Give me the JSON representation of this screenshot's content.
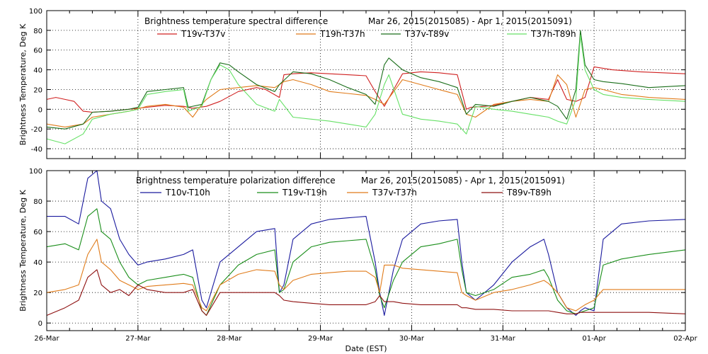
{
  "chart_data": [
    {
      "type": "line",
      "title": "Brightness temperature spectral difference",
      "date_range": "Mar 26, 2015(2015085) - Apr  1, 2015(2015091)",
      "ylabel": "Brightness Temperature, Deg K",
      "xlim": [
        0,
        7
      ],
      "ylim": [
        -50,
        100
      ],
      "yticks": [
        -40,
        -20,
        0,
        20,
        40,
        60,
        80,
        100
      ],
      "series": [
        {
          "name": "T19v-T37v",
          "color": "#d02020",
          "x": [
            0,
            0.1,
            0.2,
            0.3,
            0.4,
            0.5,
            0.7,
            0.9,
            1.1,
            1.3,
            1.5,
            1.6,
            1.75,
            1.9,
            2.1,
            2.3,
            2.4,
            2.55,
            2.6,
            2.7,
            2.9,
            3.1,
            3.3,
            3.5,
            3.6,
            3.7,
            3.9,
            4.1,
            4.3,
            4.5,
            4.6,
            4.65,
            4.8,
            4.9,
            5.1,
            5.3,
            5.5,
            5.6,
            5.7,
            5.8,
            5.9,
            6.0,
            6.2,
            6.5,
            7.0
          ],
          "y": [
            10,
            12,
            10,
            8,
            -2,
            -3,
            -2,
            0,
            2,
            4,
            3,
            1,
            3,
            8,
            18,
            22,
            20,
            12,
            35,
            36,
            37,
            36,
            35,
            34,
            18,
            3,
            36,
            38,
            37,
            35,
            0,
            2,
            3,
            4,
            8,
            12,
            10,
            30,
            10,
            8,
            12,
            43,
            40,
            38,
            36
          ]
        },
        {
          "name": "T19h-T37h",
          "color": "#e07b1a",
          "x": [
            0,
            0.2,
            0.4,
            0.5,
            0.7,
            0.9,
            1.1,
            1.3,
            1.5,
            1.6,
            1.7,
            1.75,
            1.9,
            2.1,
            2.3,
            2.5,
            2.6,
            2.7,
            2.9,
            3.1,
            3.3,
            3.5,
            3.6,
            3.7,
            3.9,
            4.1,
            4.3,
            4.5,
            4.6,
            4.7,
            4.9,
            5.1,
            5.3,
            5.5,
            5.6,
            5.7,
            5.8,
            5.9,
            6.0,
            6.1,
            6.3,
            6.6,
            7.0
          ],
          "y": [
            -15,
            -18,
            -15,
            -8,
            -5,
            -2,
            3,
            5,
            2,
            -8,
            5,
            10,
            20,
            22,
            24,
            22,
            28,
            30,
            25,
            18,
            16,
            14,
            10,
            5,
            30,
            25,
            20,
            15,
            -5,
            -8,
            5,
            8,
            10,
            8,
            35,
            25,
            -8,
            20,
            22,
            20,
            15,
            12,
            10
          ]
        },
        {
          "name": "T37v-T89v",
          "color": "#1a6e1a",
          "x": [
            0,
            0.2,
            0.4,
            0.5,
            0.7,
            0.9,
            1.0,
            1.1,
            1.3,
            1.5,
            1.55,
            1.7,
            1.8,
            1.9,
            2.0,
            2.1,
            2.3,
            2.5,
            2.55,
            2.7,
            2.9,
            3.1,
            3.3,
            3.5,
            3.6,
            3.7,
            3.75,
            3.9,
            4.1,
            4.3,
            4.5,
            4.6,
            4.7,
            4.9,
            5.1,
            5.3,
            5.5,
            5.6,
            5.7,
            5.8,
            5.85,
            5.9,
            6.0,
            6.1,
            6.3,
            6.6,
            7.0
          ],
          "y": [
            -18,
            -20,
            -15,
            -3,
            -2,
            0,
            2,
            18,
            20,
            22,
            2,
            5,
            30,
            47,
            45,
            38,
            25,
            18,
            25,
            38,
            36,
            30,
            22,
            15,
            5,
            45,
            52,
            40,
            32,
            28,
            22,
            -5,
            5,
            3,
            8,
            12,
            8,
            3,
            -10,
            20,
            80,
            45,
            30,
            28,
            26,
            22,
            24
          ]
        },
        {
          "name": "T37h-T89h",
          "color": "#66e066",
          "x": [
            0,
            0.2,
            0.4,
            0.5,
            0.7,
            0.9,
            1.0,
            1.1,
            1.3,
            1.5,
            1.55,
            1.7,
            1.8,
            1.9,
            2.0,
            2.1,
            2.3,
            2.5,
            2.55,
            2.7,
            2.9,
            3.1,
            3.3,
            3.5,
            3.6,
            3.7,
            3.75,
            3.9,
            4.1,
            4.3,
            4.5,
            4.6,
            4.7,
            4.9,
            5.1,
            5.3,
            5.5,
            5.6,
            5.7,
            5.8,
            5.85,
            5.9,
            6.0,
            6.1,
            6.3,
            6.6,
            7.0
          ],
          "y": [
            -30,
            -35,
            -25,
            -10,
            -5,
            -2,
            0,
            15,
            18,
            20,
            -2,
            3,
            30,
            45,
            40,
            25,
            5,
            -2,
            10,
            -8,
            -10,
            -12,
            -15,
            -18,
            -5,
            25,
            35,
            -5,
            -10,
            -12,
            -15,
            -25,
            3,
            0,
            -2,
            -5,
            -8,
            -12,
            -15,
            10,
            75,
            40,
            20,
            15,
            12,
            10,
            8
          ]
        }
      ]
    },
    {
      "type": "line",
      "title": "Brightness temperature polarization difference",
      "date_range": "Mar 26, 2015(2015085) - Apr  1, 2015(2015091)",
      "xlabel": "Date (EST)",
      "ylabel": "Brightness Temperature, Deg K",
      "xlim": [
        0,
        7
      ],
      "ylim": [
        -5,
        100
      ],
      "yticks": [
        0,
        20,
        40,
        60,
        80,
        100
      ],
      "xtick_labels": [
        "26-Mar",
        "27-Mar",
        "28-Mar",
        "29-Mar",
        "30-Mar",
        "31-Mar",
        "01-Apr",
        "02-Apr"
      ],
      "series": [
        {
          "name": "T10v-T10h",
          "color": "#1a1a9e",
          "x": [
            0,
            0.2,
            0.35,
            0.45,
            0.55,
            0.6,
            0.7,
            0.8,
            0.9,
            1.0,
            1.1,
            1.3,
            1.5,
            1.6,
            1.7,
            1.75,
            1.9,
            2.1,
            2.3,
            2.5,
            2.55,
            2.6,
            2.7,
            2.9,
            3.1,
            3.3,
            3.5,
            3.6,
            3.65,
            3.7,
            3.8,
            3.9,
            4.1,
            4.3,
            4.5,
            4.55,
            4.6,
            4.7,
            4.9,
            5.1,
            5.3,
            5.45,
            5.5,
            5.6,
            5.7,
            5.8,
            5.85,
            5.9,
            6.0,
            6.1,
            6.3,
            6.6,
            7.0
          ],
          "y": [
            70,
            70,
            65,
            95,
            100,
            80,
            75,
            55,
            45,
            38,
            40,
            42,
            45,
            48,
            15,
            10,
            40,
            50,
            60,
            62,
            20,
            25,
            55,
            65,
            68,
            69,
            70,
            40,
            20,
            5,
            35,
            55,
            65,
            67,
            68,
            40,
            20,
            15,
            25,
            40,
            50,
            55,
            45,
            20,
            10,
            5,
            8,
            10,
            8,
            55,
            65,
            67,
            68
          ]
        },
        {
          "name": "T19v-T19h",
          "color": "#1a8e1a",
          "x": [
            0,
            0.2,
            0.35,
            0.45,
            0.55,
            0.6,
            0.7,
            0.8,
            0.9,
            1.0,
            1.1,
            1.3,
            1.5,
            1.6,
            1.7,
            1.75,
            1.9,
            2.1,
            2.3,
            2.5,
            2.55,
            2.6,
            2.7,
            2.9,
            3.1,
            3.3,
            3.5,
            3.6,
            3.65,
            3.7,
            3.8,
            3.9,
            4.1,
            4.3,
            4.5,
            4.55,
            4.6,
            4.7,
            4.9,
            5.1,
            5.3,
            5.45,
            5.5,
            5.6,
            5.7,
            5.8,
            5.85,
            5.9,
            6.0,
            6.1,
            6.3,
            6.6,
            7.0
          ],
          "y": [
            50,
            52,
            48,
            70,
            75,
            60,
            55,
            40,
            30,
            25,
            28,
            30,
            32,
            30,
            8,
            5,
            25,
            38,
            45,
            48,
            20,
            22,
            40,
            50,
            53,
            54,
            55,
            35,
            18,
            10,
            28,
            40,
            50,
            52,
            55,
            35,
            20,
            18,
            22,
            30,
            32,
            35,
            30,
            15,
            8,
            6,
            7,
            8,
            10,
            38,
            42,
            45,
            48
          ]
        },
        {
          "name": "T37v-T37h",
          "color": "#e07b1a",
          "x": [
            0,
            0.2,
            0.35,
            0.45,
            0.55,
            0.6,
            0.7,
            0.8,
            0.9,
            1.0,
            1.1,
            1.3,
            1.5,
            1.6,
            1.7,
            1.75,
            1.9,
            2.1,
            2.3,
            2.5,
            2.55,
            2.6,
            2.7,
            2.9,
            3.1,
            3.3,
            3.5,
            3.6,
            3.65,
            3.7,
            3.8,
            3.9,
            4.1,
            4.3,
            4.5,
            4.55,
            4.6,
            4.7,
            4.9,
            5.1,
            5.3,
            5.45,
            5.5,
            5.6,
            5.7,
            5.8,
            5.85,
            5.9,
            6.0,
            6.1,
            6.3,
            6.6,
            7.0
          ],
          "y": [
            20,
            22,
            25,
            45,
            55,
            40,
            35,
            28,
            25,
            22,
            24,
            25,
            26,
            25,
            10,
            8,
            25,
            32,
            35,
            34,
            25,
            22,
            28,
            32,
            33,
            34,
            34,
            30,
            20,
            38,
            38,
            36,
            35,
            34,
            33,
            20,
            18,
            15,
            20,
            22,
            25,
            28,
            26,
            20,
            10,
            8,
            10,
            12,
            15,
            22,
            22,
            22,
            22
          ]
        },
        {
          "name": "T89v-T89h",
          "color": "#8e1010",
          "x": [
            0,
            0.2,
            0.35,
            0.45,
            0.55,
            0.6,
            0.7,
            0.8,
            0.9,
            1.0,
            1.1,
            1.3,
            1.5,
            1.6,
            1.7,
            1.75,
            1.9,
            2.1,
            2.3,
            2.5,
            2.55,
            2.6,
            2.7,
            2.9,
            3.1,
            3.3,
            3.5,
            3.6,
            3.65,
            3.7,
            3.8,
            3.9,
            4.1,
            4.3,
            4.5,
            4.55,
            4.6,
            4.7,
            4.9,
            5.1,
            5.3,
            5.45,
            5.5,
            5.6,
            5.7,
            5.8,
            5.85,
            5.9,
            6.0,
            6.1,
            6.3,
            6.6,
            7.0
          ],
          "y": [
            5,
            10,
            15,
            30,
            35,
            25,
            20,
            22,
            18,
            25,
            22,
            20,
            20,
            22,
            8,
            5,
            20,
            20,
            20,
            20,
            18,
            15,
            14,
            13,
            12,
            12,
            12,
            14,
            18,
            14,
            14,
            13,
            12,
            12,
            12,
            10,
            10,
            9,
            9,
            8,
            8,
            8,
            8,
            7,
            6,
            6,
            7,
            7,
            7,
            7,
            7,
            7,
            6
          ]
        }
      ]
    }
  ]
}
